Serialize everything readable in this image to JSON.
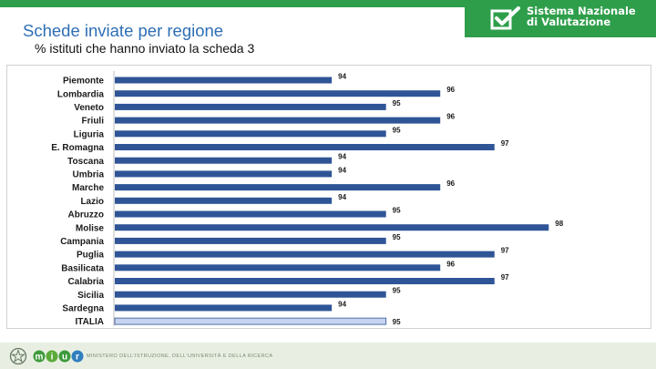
{
  "header": {
    "brand_line1": "Sistema Nazionale",
    "brand_line2": "di Valutazione",
    "title": "Schede inviate per regione",
    "subtitle": "% istituti che hanno inviato la scheda 3"
  },
  "footer": {
    "ministry_text": "MINISTERO DELL'ISTRUZIONE, DELL'UNIVERSITÀ E DELLA RICERCA",
    "logo_letters": [
      "m",
      "i",
      "u",
      "r"
    ]
  },
  "colors": {
    "bar": "#2f5597",
    "total_bar": "#c7d3ef",
    "brand_green": "#2e9e4a"
  },
  "chart_data": {
    "type": "bar",
    "orientation": "horizontal",
    "title": "",
    "xlabel": "",
    "ylabel": "",
    "xlim": [
      90,
      98.6
    ],
    "categories": [
      "Piemonte",
      "Lombardia",
      "Veneto",
      "Friuli",
      "Liguria",
      "E. Romagna",
      "Toscana",
      "Umbria",
      "Marche",
      "Lazio",
      "Abruzzo",
      "Molise",
      "Campania",
      "Puglia",
      "Basilicata",
      "Calabria",
      "Sicilia",
      "Sardegna",
      "ITALIA"
    ],
    "values": [
      94,
      96,
      95,
      96,
      95,
      97,
      94,
      94,
      96,
      94,
      95,
      98,
      95,
      97,
      96,
      97,
      95,
      94,
      95
    ],
    "highlight": "ITALIA"
  }
}
